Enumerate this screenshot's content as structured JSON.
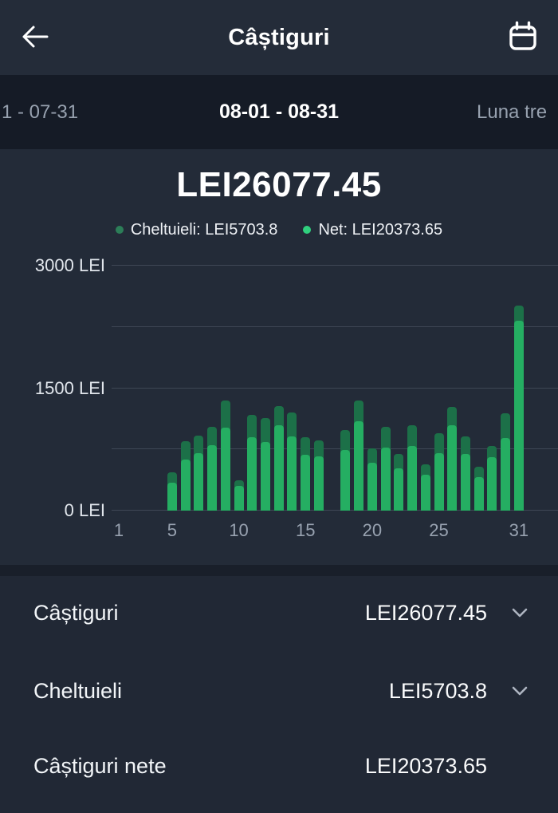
{
  "colors": {
    "header_bg": "#242C39",
    "tabbar_bg": "#151B26",
    "chart_bg": "#232B38",
    "divider_bg": "#191F2A",
    "details_bg": "#212835",
    "text_primary": "#F2F5F8",
    "text_muted": "#97A1AF",
    "net_green": "#25AE62",
    "expense_green": "#1C7048",
    "legend_net_dot": "#30D07E",
    "legend_expense_dot": "#2C7E58",
    "gridline": "rgba(160,172,190,0.22)",
    "chevron": "#ADB4C0",
    "icon_white": "#FFFFFF"
  },
  "header": {
    "title": "Câștiguri",
    "back_icon": "arrow-left-icon",
    "calendar_icon": "calendar-icon"
  },
  "tabs": {
    "previous_partial": "1 - 07-31",
    "selected": "08-01 - 08-31",
    "next_partial": "Luna tre"
  },
  "summary": {
    "total": "LEI26077.45",
    "legend": [
      {
        "name": "cheltuieli",
        "label": "Cheltuieli: LEI5703.8"
      },
      {
        "name": "net",
        "label": "Net: LEI20373.65"
      }
    ]
  },
  "chart_data": {
    "type": "bar",
    "stacked": true,
    "title": "LEI26077.45",
    "xlabel": "",
    "ylabel": "",
    "ylim": [
      0,
      3000
    ],
    "x_days": [
      1,
      2,
      3,
      4,
      5,
      6,
      7,
      8,
      9,
      10,
      11,
      12,
      13,
      14,
      15,
      16,
      17,
      18,
      19,
      20,
      21,
      22,
      23,
      24,
      25,
      26,
      27,
      28,
      29,
      30,
      31
    ],
    "series": [
      {
        "name": "Net",
        "color": "#25AE62",
        "values": [
          0,
          0,
          0,
          0,
          340,
          625,
          705,
          805,
          1015,
          300,
          895,
          840,
          1050,
          905,
          685,
          660,
          0,
          745,
          1090,
          585,
          775,
          520,
          795,
          440,
          700,
          1045,
          690,
          415,
          650,
          885,
          2330
        ]
      },
      {
        "name": "Cheltuieli",
        "color": "#1C7048",
        "values": [
          0,
          0,
          0,
          0,
          130,
          230,
          210,
          225,
          330,
          70,
          280,
          290,
          235,
          300,
          210,
          200,
          0,
          245,
          260,
          180,
          255,
          170,
          250,
          130,
          245,
          230,
          220,
          120,
          145,
          310,
          185
        ]
      }
    ],
    "gridline_values": [
      0,
      750,
      1500,
      2250,
      3000
    ],
    "yticks": [
      {
        "value": 0,
        "label": "0 LEI"
      },
      {
        "value": 1500,
        "label": "1500 LEI"
      },
      {
        "value": 3000,
        "label": "3000 LEI"
      }
    ],
    "xticks": [
      1,
      5,
      10,
      15,
      20,
      25,
      31
    ],
    "legend_position": "top",
    "grid": true
  },
  "details": {
    "rows": [
      {
        "label": "Câștiguri",
        "value": "LEI26077.45",
        "expandable": true
      },
      {
        "label": "Cheltuieli",
        "value": "LEI5703.8",
        "expandable": true
      },
      {
        "label": "Câștiguri nete",
        "value": "LEI20373.65",
        "expandable": false
      }
    ]
  }
}
